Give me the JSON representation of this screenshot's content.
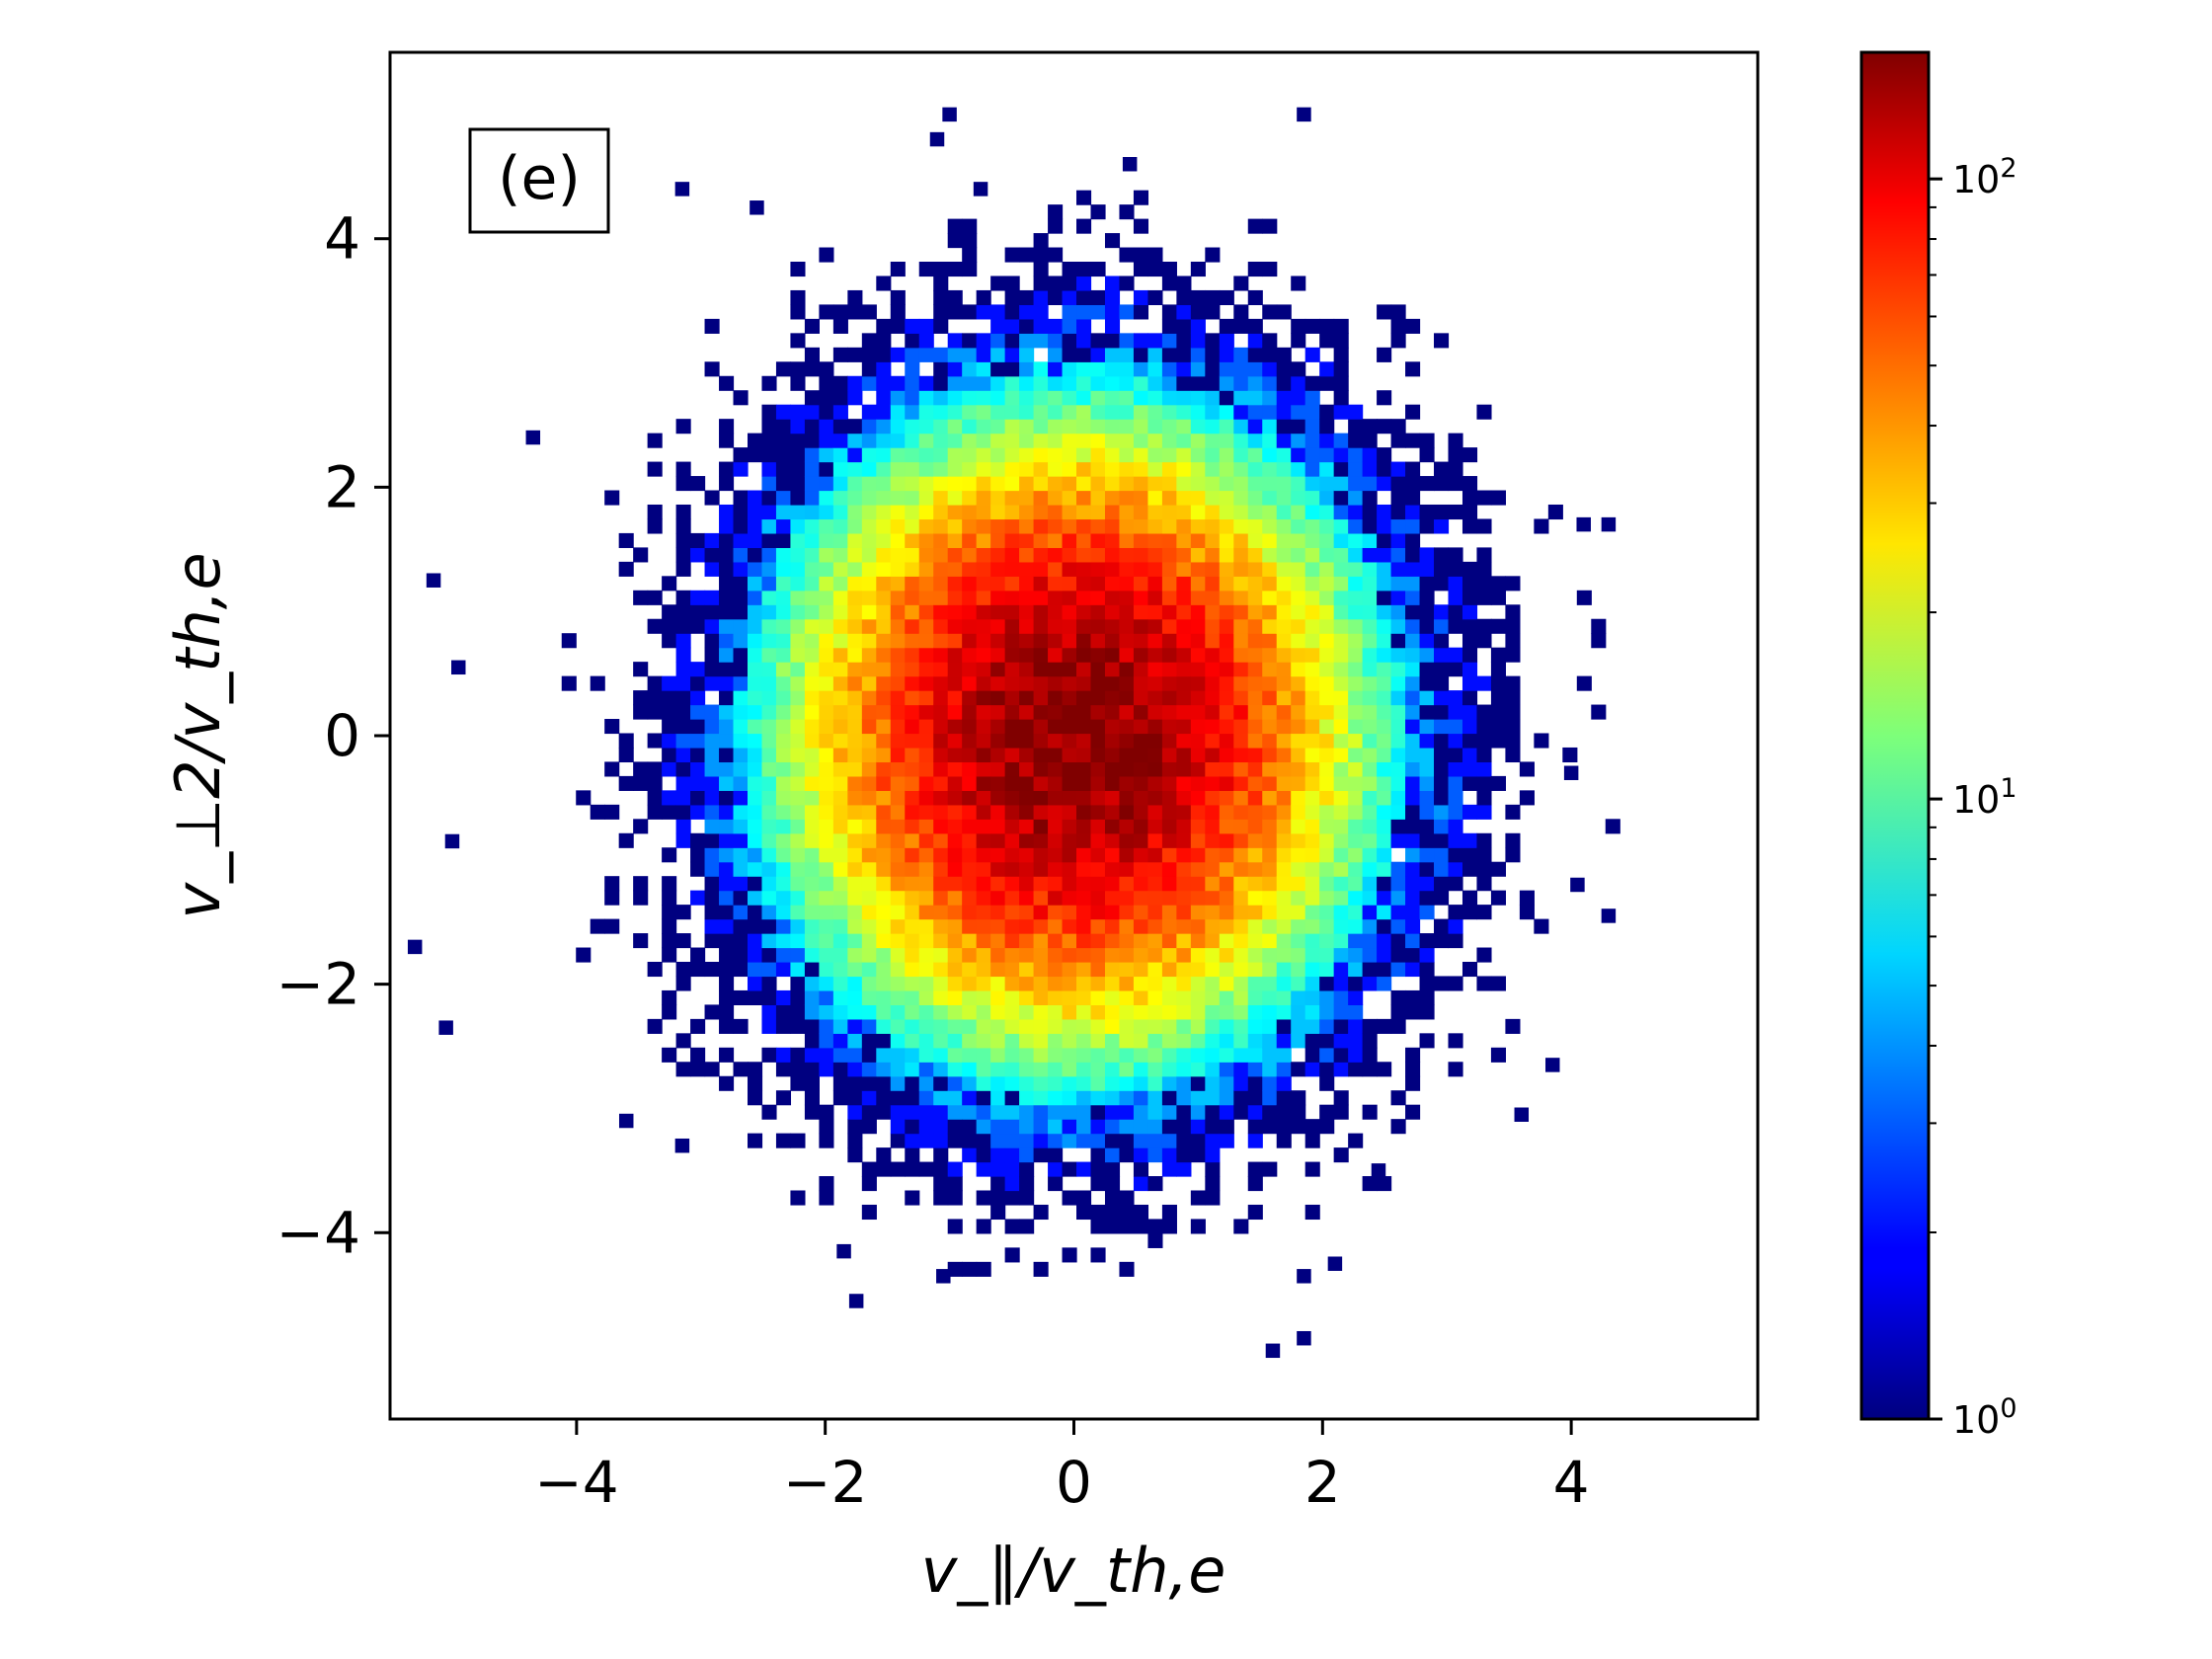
{
  "chart_data": {
    "type": "heatmap",
    "panel_label": "(e)",
    "title": "",
    "xlabel": "v_∥/v_th,e",
    "ylabel": "v_⊥2/v_th,e",
    "xlim": [
      -5.5,
      5.5
    ],
    "ylim": [
      -5.5,
      5.5
    ],
    "x_ticks": [
      -4,
      -2,
      0,
      2,
      4
    ],
    "x_tick_labels": [
      "−4",
      "−2",
      "0",
      "2",
      "4"
    ],
    "y_ticks": [
      -4,
      -2,
      0,
      2,
      4
    ],
    "y_tick_labels": [
      "−4",
      "−2",
      "0",
      "2",
      "4"
    ],
    "grid": false,
    "bin_width": 0.115,
    "distribution": {
      "shape": "2D Gaussian particle velocity histogram",
      "center": [
        0.0,
        0.0
      ],
      "sigma_parallel": 1.05,
      "sigma_perp2": 1.15,
      "peak_count": 160,
      "support_radius": 4.4
    },
    "colorbar": {
      "scale": "log",
      "colormap": "jet",
      "min": 1,
      "max": 160,
      "major_ticks": [
        1,
        10,
        100
      ],
      "major_tick_labels": [
        {
          "base": "10",
          "exp": "0"
        },
        {
          "base": "10",
          "exp": "1"
        },
        {
          "base": "10",
          "exp": "2"
        }
      ],
      "minor_ticks": [
        2,
        3,
        4,
        5,
        6,
        7,
        8,
        9,
        20,
        30,
        40,
        50,
        60,
        70,
        80,
        90
      ]
    },
    "outlier_points": [
      [
        -1.0,
        5.0
      ],
      [
        1.85,
        5.0
      ],
      [
        -1.1,
        4.8
      ],
      [
        0.45,
        4.6
      ],
      [
        -3.15,
        4.4
      ],
      [
        -0.75,
        4.4
      ],
      [
        -2.55,
        4.25
      ],
      [
        -5.0,
        -0.85
      ],
      [
        -5.3,
        -1.7
      ],
      [
        -5.05,
        -2.35
      ],
      [
        -4.95,
        0.55
      ],
      [
        -5.15,
        1.25
      ],
      [
        4.3,
        1.7
      ],
      [
        4.1,
        1.7
      ],
      [
        4.05,
        -1.2
      ],
      [
        4.3,
        -1.45
      ],
      [
        3.85,
        -2.65
      ],
      [
        -1.85,
        -4.15
      ],
      [
        -1.75,
        -4.55
      ],
      [
        -1.05,
        -4.35
      ],
      [
        1.85,
        -4.35
      ],
      [
        2.1,
        -4.25
      ],
      [
        1.6,
        -4.95
      ],
      [
        1.85,
        -4.85
      ],
      [
        -3.6,
        -3.1
      ],
      [
        -3.15,
        -3.3
      ],
      [
        2.45,
        -3.5
      ],
      [
        3.6,
        -3.05
      ],
      [
        -4.35,
        2.4
      ],
      [
        4.0,
        -0.3
      ]
    ]
  }
}
